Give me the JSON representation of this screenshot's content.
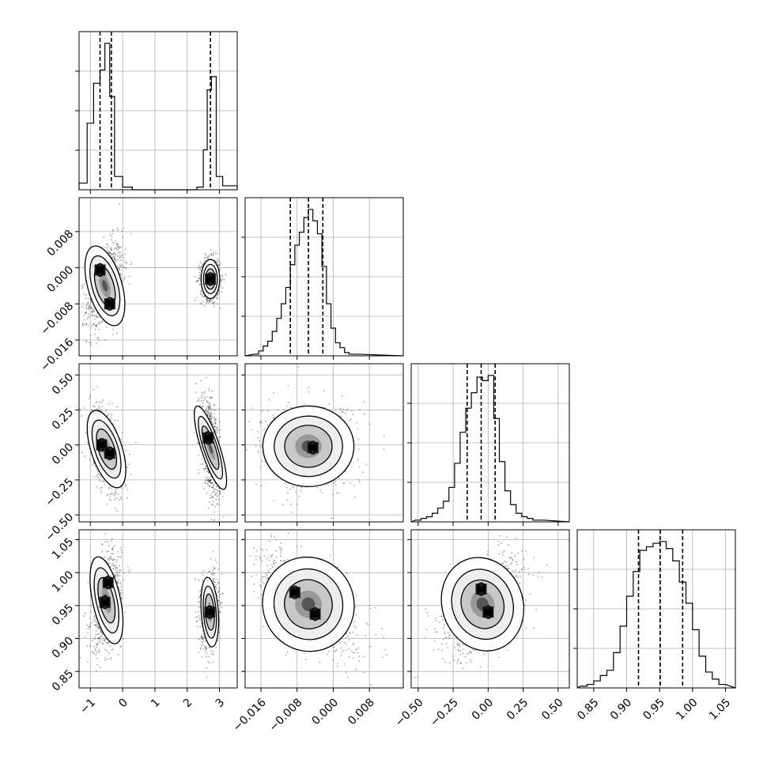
{
  "chart_data": {
    "type": "corner",
    "grid": true,
    "colors": {
      "line": "#000000",
      "grid": "#b0b0b0",
      "density": "#000000"
    },
    "parameters": [
      {
        "range": [
          -1.35,
          3.55
        ],
        "ticks": [
          -1,
          0,
          1,
          2,
          3
        ],
        "tick_labels": [
          "−1",
          "0",
          "1",
          "2",
          "3"
        ],
        "quantiles": [
          -0.7,
          -0.35,
          2.72
        ],
        "hist_edges": [
          -1.35,
          -1.1,
          -0.9,
          -0.7,
          -0.55,
          -0.4,
          -0.25,
          0.0,
          0.3,
          2.3,
          2.5,
          2.62,
          2.75,
          2.9,
          3.1,
          3.55
        ],
        "hist_counts": [
          0.05,
          0.5,
          0.8,
          0.9,
          1.1,
          0.7,
          0.1,
          0.02,
          0.0,
          0.02,
          0.3,
          0.75,
          0.85,
          0.1,
          0.03
        ]
      },
      {
        "range": [
          -0.0195,
          0.0155
        ],
        "ticks": [
          -0.016,
          -0.008,
          0.0,
          0.008
        ],
        "tick_labels": [
          "−0.016",
          "−0.008",
          "0.000",
          "0.008"
        ],
        "quantiles": [
          -0.0095,
          -0.0055,
          -0.0023
        ],
        "hist_edges": [
          -0.0175,
          -0.0165,
          -0.0155,
          -0.0145,
          -0.0135,
          -0.0125,
          -0.0115,
          -0.0105,
          -0.0095,
          -0.0085,
          -0.0075,
          -0.0065,
          -0.0055,
          -0.0045,
          -0.0035,
          -0.0025,
          -0.0015,
          -0.0005,
          0.0005,
          0.0015,
          0.0025,
          0.0035,
          0.0045,
          0.0055
        ],
        "hist_counts": [
          0.01,
          0.03,
          0.06,
          0.09,
          0.15,
          0.23,
          0.32,
          0.42,
          0.56,
          0.68,
          0.76,
          0.85,
          0.9,
          0.83,
          0.75,
          0.55,
          0.32,
          0.17,
          0.08,
          0.05,
          0.02,
          0.01,
          0.01
        ]
      },
      {
        "range": [
          -0.55,
          0.58
        ],
        "ticks": [
          -0.5,
          -0.25,
          0.0,
          0.25,
          0.5
        ],
        "tick_labels": [
          "−0.50",
          "−0.25",
          "0.00",
          "0.25",
          "0.50"
        ],
        "quantiles": [
          -0.15,
          -0.05,
          0.05
        ],
        "hist_edges": [
          -0.52,
          -0.48,
          -0.44,
          -0.4,
          -0.36,
          -0.32,
          -0.28,
          -0.24,
          -0.2,
          -0.16,
          -0.12,
          -0.08,
          -0.04,
          0.0,
          0.04,
          0.08,
          0.12,
          0.16,
          0.2,
          0.24,
          0.28,
          0.32,
          0.36,
          0.4
        ],
        "hist_counts": [
          0.01,
          0.02,
          0.03,
          0.05,
          0.08,
          0.12,
          0.2,
          0.34,
          0.52,
          0.66,
          0.75,
          0.84,
          0.82,
          0.85,
          0.6,
          0.35,
          0.18,
          0.1,
          0.05,
          0.03,
          0.02,
          0.01,
          0.01
        ]
      },
      {
        "range": [
          0.825,
          1.065
        ],
        "ticks": [
          0.85,
          0.9,
          0.95,
          1.0,
          1.05
        ],
        "tick_labels": [
          "0.85",
          "0.90",
          "0.95",
          "1.00",
          "1.05"
        ],
        "quantiles": [
          0.918,
          0.951,
          0.985
        ],
        "hist_edges": [
          0.83,
          0.84,
          0.85,
          0.86,
          0.87,
          0.88,
          0.89,
          0.9,
          0.91,
          0.92,
          0.93,
          0.94,
          0.95,
          0.96,
          0.97,
          0.98,
          0.99,
          1.0,
          1.01,
          1.02,
          1.03,
          1.04,
          1.05
        ],
        "hist_counts": [
          0.01,
          0.02,
          0.04,
          0.07,
          0.1,
          0.2,
          0.35,
          0.52,
          0.66,
          0.78,
          0.8,
          0.82,
          0.83,
          0.79,
          0.72,
          0.6,
          0.48,
          0.33,
          0.18,
          0.09,
          0.05,
          0.02
        ]
      }
    ],
    "pairs": [
      {
        "row": 1,
        "col": 0,
        "clusters": [
          {
            "x": -0.55,
            "y": -0.004,
            "sx": 0.22,
            "sy": 0.0038,
            "rho": 0.4
          },
          {
            "x": 2.72,
            "y": -0.0025,
            "sx": 0.12,
            "sy": 0.0018,
            "rho": 0.0
          }
        ],
        "peaks": [
          {
            "x": -0.7,
            "y": -0.0005
          },
          {
            "x": -0.4,
            "y": -0.008
          },
          {
            "x": 2.72,
            "y": -0.0025
          }
        ]
      },
      {
        "row": 2,
        "col": 0,
        "clusters": [
          {
            "x": -0.5,
            "y": -0.03,
            "sx": 0.2,
            "sy": 0.12,
            "rho": -0.45
          },
          {
            "x": 2.72,
            "y": -0.02,
            "sx": 0.12,
            "sy": 0.13,
            "rho": -0.45
          }
        ],
        "peaks": [
          {
            "x": -0.65,
            "y": 0.0
          },
          {
            "x": -0.4,
            "y": -0.06
          },
          {
            "x": 2.65,
            "y": 0.05
          }
        ]
      },
      {
        "row": 3,
        "col": 0,
        "clusters": [
          {
            "x": -0.5,
            "y": 0.958,
            "sx": 0.18,
            "sy": 0.028,
            "rho": 0.3
          },
          {
            "x": 2.7,
            "y": 0.94,
            "sx": 0.11,
            "sy": 0.022,
            "rho": 0.1
          }
        ],
        "peaks": [
          {
            "x": -0.45,
            "y": 0.985
          },
          {
            "x": -0.55,
            "y": 0.955
          },
          {
            "x": 2.7,
            "y": 0.94
          }
        ]
      },
      {
        "row": 2,
        "col": 1,
        "clusters": [
          {
            "x": -0.0055,
            "y": -0.01,
            "sx": 0.0042,
            "sy": 0.12,
            "rho": 0.0
          }
        ],
        "peaks": [
          {
            "x": -0.0045,
            "y": -0.02
          }
        ]
      },
      {
        "row": 3,
        "col": 1,
        "clusters": [
          {
            "x": -0.0055,
            "y": 0.952,
            "sx": 0.0042,
            "sy": 0.03,
            "rho": -0.6
          }
        ],
        "peaks": [
          {
            "x": -0.004,
            "y": 0.937
          },
          {
            "x": -0.0085,
            "y": 0.97
          }
        ]
      },
      {
        "row": 3,
        "col": 2,
        "clusters": [
          {
            "x": -0.04,
            "y": 0.952,
            "sx": 0.12,
            "sy": 0.03,
            "rho": 0.5
          }
        ],
        "peaks": [
          {
            "x": 0.0,
            "y": 0.94
          },
          {
            "x": -0.05,
            "y": 0.975
          }
        ]
      }
    ]
  }
}
